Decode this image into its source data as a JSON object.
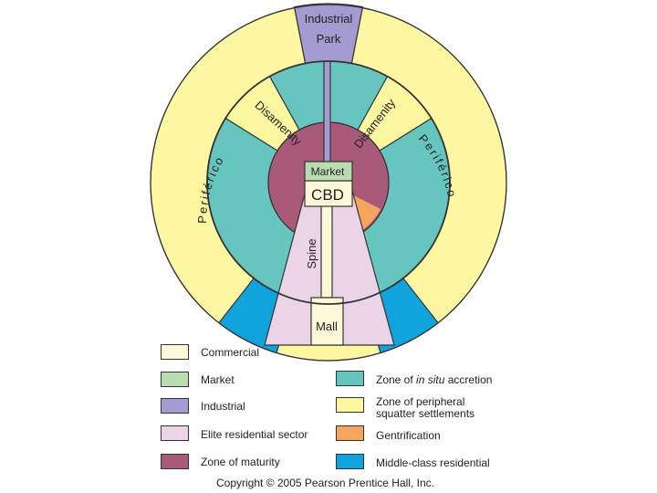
{
  "colors": {
    "commercial": "#fdf8d8",
    "market": "#b9dcb0",
    "industrial": "#a49bd0",
    "elite": "#ebd4e8",
    "maturity": "#a85a78",
    "accretion": "#66c6bf",
    "squatter": "#fcf7a0",
    "gentrification": "#f6a45e",
    "middle_class": "#11a3dc",
    "stroke": "#333333"
  },
  "labels": {
    "industrial_line1": "Industrial",
    "industrial_line2": "Park",
    "disamenity_left": "Disamenity",
    "disamenity_right": "Disamenity",
    "market": "Market",
    "cbd": "CBD",
    "spine": "Spine",
    "mall": "Mall",
    "periferico_left": "Periférico",
    "periferico_right": "Periférico"
  },
  "legend": [
    {
      "name": "commercial",
      "color_key": "commercial",
      "label": "Commercial"
    },
    {
      "name": "market",
      "color_key": "market",
      "label": "Market"
    },
    {
      "name": "industrial",
      "color_key": "industrial",
      "label": "Industrial"
    },
    {
      "name": "elite",
      "color_key": "elite",
      "label": "Elite residential sector"
    },
    {
      "name": "maturity",
      "color_key": "maturity",
      "label": "Zone of maturity"
    },
    {
      "name": "accretion",
      "color_key": "accretion",
      "label_pre": "Zone of ",
      "label_italic": "in situ",
      "label_post": " accretion"
    },
    {
      "name": "squatter",
      "color_key": "squatter",
      "label_line1": "Zone of peripheral",
      "label_line2": "squatter settlements"
    },
    {
      "name": "gentrification",
      "color_key": "gentrification",
      "label": "Gentrification"
    },
    {
      "name": "middle-class",
      "color_key": "middle_class",
      "label": "Middle-class residential"
    }
  ],
  "copyright": "Copyright © 2005 Pearson Prentice Hall, Inc."
}
